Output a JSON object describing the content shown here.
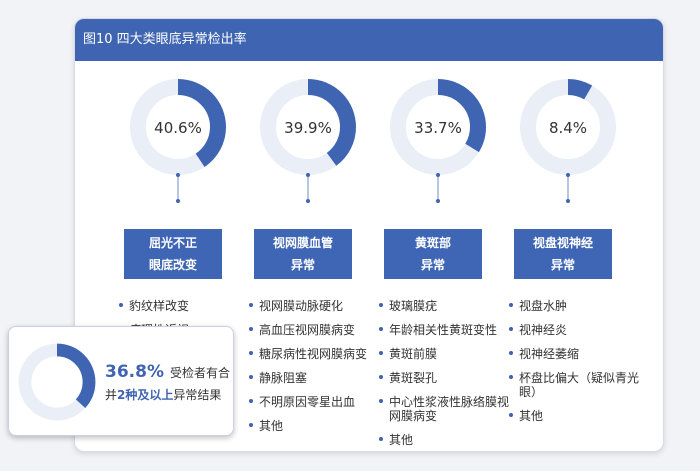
{
  "header": {
    "title": "图10 四大类眼底异常检出率"
  },
  "colors": {
    "accent": "#3e64b2",
    "track": "#e9eef7"
  },
  "chart_data": {
    "type": "pie",
    "title": "图10 四大类眼底异常检出率",
    "categories": [
      {
        "label_lines": [
          "屈光不正",
          "眼底改变"
        ],
        "value": 40.6,
        "pct_text": "40.6%",
        "items": [
          "豹纹样改变",
          "病理性近视"
        ]
      },
      {
        "label_lines": [
          "视网膜血管",
          "异常"
        ],
        "value": 39.9,
        "pct_text": "39.9%",
        "items": [
          "视网膜动脉硬化",
          "高血压视网膜病变",
          "糖尿病性视网膜病变",
          "静脉阻塞",
          "不明原因零星出血",
          "其他"
        ]
      },
      {
        "label_lines": [
          "黄斑部",
          "异常"
        ],
        "value": 33.7,
        "pct_text": "33.7%",
        "items": [
          "玻璃膜疣",
          "年龄相关性黄斑变性",
          "黄斑前膜",
          "黄斑裂孔",
          "中心性浆液性脉络膜视网膜病变",
          "其他"
        ]
      },
      {
        "label_lines": [
          "视盘视神经",
          "异常"
        ],
        "value": 8.4,
        "pct_text": "8.4%",
        "items": [
          "视盘水肿",
          "视神经炎",
          "视神经萎缩",
          "杯盘比偏大（疑似青光眼）",
          "其他"
        ]
      }
    ],
    "summary": {
      "value": 36.8,
      "pct_text": "36.8%",
      "line1": "受检者有合",
      "line2_pre": "并",
      "line2_hl": "2种及以上",
      "line2_post": "异常结果"
    }
  }
}
